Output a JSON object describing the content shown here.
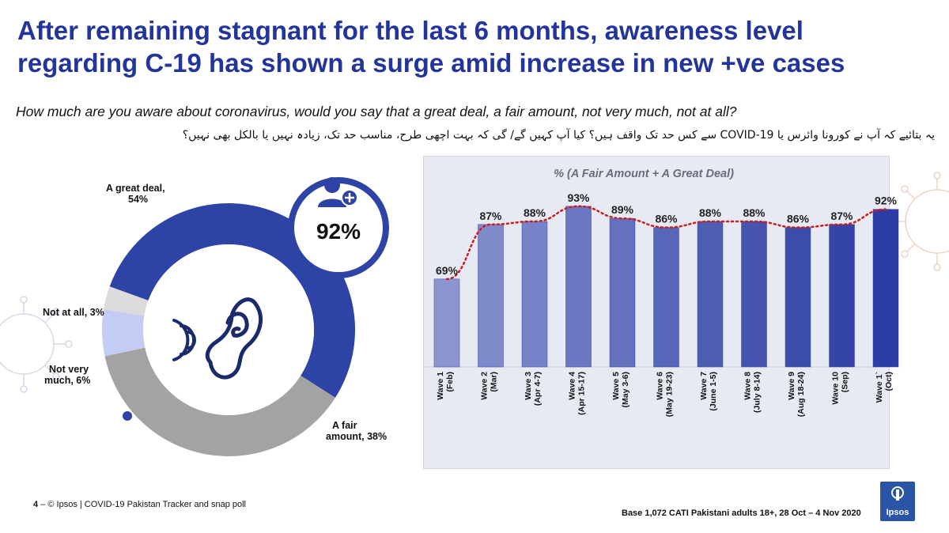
{
  "title": "After remaining stagnant for the last 6 months, awareness level regarding C-19 has shown a surge amid increase in new +ve cases",
  "question": "How much are you aware about coronavirus, would you say that a great deal, a fair amount, not very much, not at all?",
  "question_urdu": "یہ بتائیے کہ آپ نے کورونا وائرس یا COVID-19 سے کس حد تک واقف ہیں؟ کیا آپ کہیں گے/ گی کہ بہت اچھی طرح، مناسب حد تک، زیادہ نہیں یا بالکل بھی نہیں؟",
  "donut_callout": "92%",
  "footer_page": "4",
  "footer_source": "– © Ipsos | COVID-19 Pakistan Tracker and snap poll",
  "footer_base": "Base 1,072 CATI Pakistani adults 18+, 28 Oct – 4 Nov 2020",
  "logo_text": "Ipsos",
  "icons": [
    "user-plus-icon",
    "ear-icon",
    "sound-waves-icon",
    "virus-icon"
  ],
  "colors": {
    "title": "#23359b",
    "great_deal": "#2e43a6",
    "fair_amount": "#a3a3a3",
    "not_very_much": "#c3ccf2",
    "not_at_all": "#dcdcdc",
    "trend": "#c81e1e"
  },
  "chart_data": [
    {
      "type": "pie",
      "labels": [
        "A great deal, 54%",
        "A fair amount, 38%",
        "Not very much, 6%",
        "Not at all, 3%"
      ],
      "values": [
        54,
        38,
        6,
        3
      ]
    },
    {
      "type": "bar",
      "title": "% (A Fair Amount + A Great Deal)",
      "categories": [
        [
          "Wave 1",
          "(Feb)"
        ],
        [
          "Wave 2",
          "(Mar)"
        ],
        [
          "Wave 3",
          "(Apr 4-7)"
        ],
        [
          "Wave 4",
          "(Apr 15-17)"
        ],
        [
          "Wave 5",
          "(May 3-6)"
        ],
        [
          "Wave 6",
          "(May 19-23)"
        ],
        [
          "Wave 7",
          "(June 1-5)"
        ],
        [
          "Wave 8",
          "(July 8-14)"
        ],
        [
          "Wave 9",
          "(Aug 18-24)"
        ],
        [
          "Wave 10",
          "(Sep)"
        ],
        [
          "Wave 1`",
          "(Oct)"
        ]
      ],
      "values": [
        69,
        87,
        88,
        93,
        89,
        86,
        88,
        88,
        86,
        87,
        92
      ],
      "data_labels": [
        "69%",
        "87%",
        "88%",
        "93%",
        "89%",
        "86%",
        "88%",
        "88%",
        "86%",
        "87%",
        "92%"
      ],
      "trendline": "dotted",
      "ylim": [
        0,
        100
      ]
    }
  ]
}
